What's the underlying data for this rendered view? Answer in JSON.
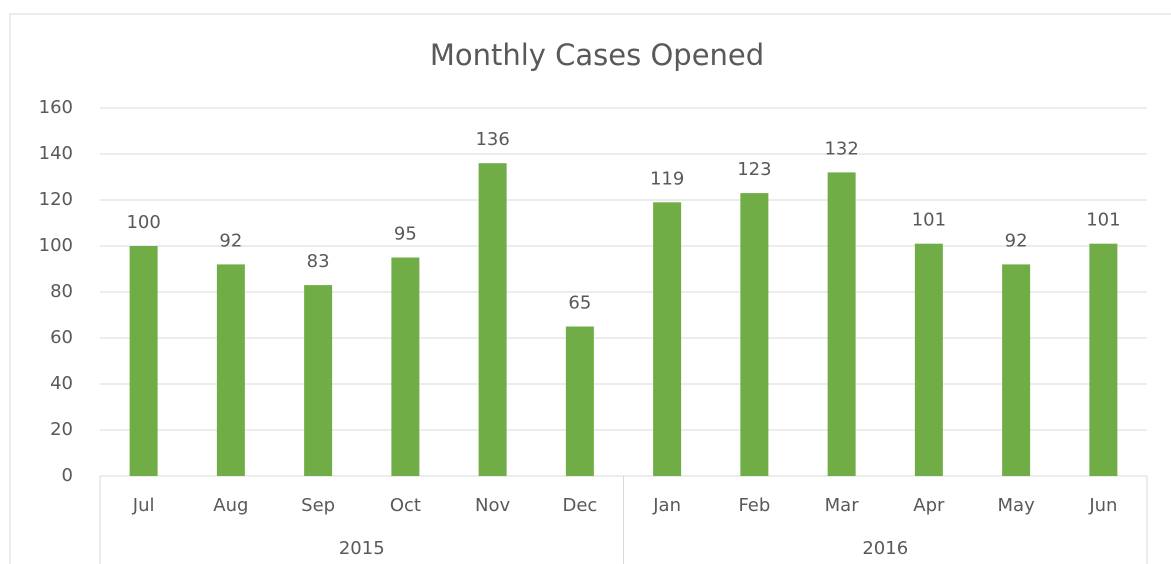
{
  "chart_data": {
    "type": "bar",
    "title": "Monthly Cases Opened",
    "color": "#70ad47",
    "groups": [
      {
        "label": "2015",
        "categories": [
          "Jul",
          "Aug",
          "Sep",
          "Oct",
          "Nov",
          "Dec"
        ],
        "values": [
          100,
          92,
          83,
          95,
          136,
          65
        ]
      },
      {
        "label": "2016",
        "categories": [
          "Jan",
          "Feb",
          "Mar",
          "Apr",
          "May",
          "Jun"
        ],
        "values": [
          119,
          123,
          132,
          101,
          92,
          101
        ]
      }
    ],
    "ylim": [
      0,
      160
    ],
    "yticks": [
      0,
      20,
      40,
      60,
      80,
      100,
      120,
      140,
      160
    ],
    "grid": true
  }
}
